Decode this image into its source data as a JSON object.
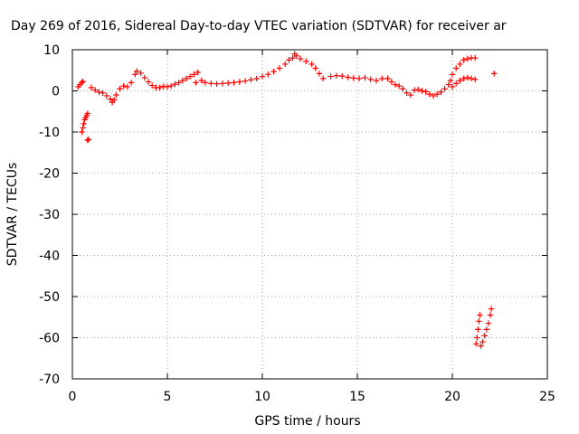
{
  "chart_data": {
    "type": "scatter",
    "title": "Day 269 of 2016, Sidereal Day-to-day VTEC variation (SDTVAR) for receiver ar",
    "xlabel": "GPS time / hours",
    "ylabel": "SDTVAR / TECUs",
    "xlim": [
      0,
      25
    ],
    "ylim": [
      -70,
      10
    ],
    "xticks": [
      "0",
      "5",
      "10",
      "15",
      "20",
      "25"
    ],
    "yticks": [
      "10",
      "0",
      "-10",
      "-20",
      "-30",
      "-40",
      "-50",
      "-60",
      "-70"
    ],
    "grid": true,
    "marker": "plus",
    "color": "#ff0000",
    "series": [
      {
        "points": [
          [
            0.3,
            1.0
          ],
          [
            0.4,
            1.5
          ],
          [
            0.5,
            2.0
          ],
          [
            0.55,
            2.3
          ],
          [
            0.5,
            -10.0
          ],
          [
            0.55,
            -9.0
          ],
          [
            0.6,
            -8.0
          ],
          [
            0.65,
            -7.0
          ],
          [
            0.7,
            -6.5
          ],
          [
            0.75,
            -6.0
          ],
          [
            0.8,
            -5.5
          ],
          [
            0.8,
            -12.0
          ],
          [
            0.85,
            -11.8
          ],
          [
            1.0,
            0.8
          ],
          [
            1.2,
            0.2
          ],
          [
            1.4,
            -0.3
          ],
          [
            1.6,
            -0.5
          ],
          [
            1.8,
            -1.2
          ],
          [
            2.0,
            -2.0
          ],
          [
            2.1,
            -2.8
          ],
          [
            2.2,
            -2.2
          ],
          [
            2.3,
            -1.0
          ],
          [
            2.5,
            0.5
          ],
          [
            2.7,
            1.2
          ],
          [
            2.9,
            1.0
          ],
          [
            3.1,
            2.0
          ],
          [
            3.3,
            4.0
          ],
          [
            3.4,
            4.8
          ],
          [
            3.6,
            4.3
          ],
          [
            3.8,
            3.2
          ],
          [
            4.0,
            2.2
          ],
          [
            4.2,
            1.3
          ],
          [
            4.4,
            0.8
          ],
          [
            4.6,
            0.8
          ],
          [
            4.8,
            1.1
          ],
          [
            5.0,
            1.0
          ],
          [
            5.2,
            1.2
          ],
          [
            5.4,
            1.6
          ],
          [
            5.6,
            2.0
          ],
          [
            5.8,
            2.5
          ],
          [
            6.0,
            3.0
          ],
          [
            6.2,
            3.5
          ],
          [
            6.4,
            4.0
          ],
          [
            6.6,
            4.5
          ],
          [
            6.5,
            2.0
          ],
          [
            6.8,
            2.5
          ],
          [
            7.0,
            2.0
          ],
          [
            7.3,
            1.8
          ],
          [
            7.6,
            1.7
          ],
          [
            7.9,
            1.8
          ],
          [
            8.2,
            1.9
          ],
          [
            8.5,
            2.0
          ],
          [
            8.8,
            2.2
          ],
          [
            9.1,
            2.4
          ],
          [
            9.4,
            2.7
          ],
          [
            9.7,
            3.0
          ],
          [
            10.0,
            3.5
          ],
          [
            10.3,
            4.0
          ],
          [
            10.6,
            4.7
          ],
          [
            10.9,
            5.5
          ],
          [
            11.2,
            6.5
          ],
          [
            11.4,
            7.5
          ],
          [
            11.6,
            8.0
          ],
          [
            11.7,
            9.0
          ],
          [
            11.8,
            8.5
          ],
          [
            12.0,
            7.8
          ],
          [
            12.3,
            7.2
          ],
          [
            12.6,
            6.5
          ],
          [
            12.8,
            5.5
          ],
          [
            13.0,
            4.2
          ],
          [
            13.2,
            3.0
          ],
          [
            13.6,
            3.5
          ],
          [
            13.9,
            3.7
          ],
          [
            14.2,
            3.6
          ],
          [
            14.5,
            3.3
          ],
          [
            14.8,
            3.1
          ],
          [
            15.1,
            3.0
          ],
          [
            15.4,
            3.2
          ],
          [
            15.7,
            2.8
          ],
          [
            16.0,
            2.5
          ],
          [
            16.3,
            3.0
          ],
          [
            16.6,
            3.0
          ],
          [
            16.8,
            2.2
          ],
          [
            17.0,
            1.5
          ],
          [
            17.2,
            1.2
          ],
          [
            17.4,
            0.5
          ],
          [
            17.6,
            -0.5
          ],
          [
            17.8,
            -1.0
          ],
          [
            18.0,
            0.2
          ],
          [
            18.2,
            0.3
          ],
          [
            18.4,
            0.0
          ],
          [
            18.6,
            -0.2
          ],
          [
            18.8,
            -0.8
          ],
          [
            19.0,
            -1.2
          ],
          [
            19.2,
            -0.8
          ],
          [
            19.4,
            -0.3
          ],
          [
            19.6,
            0.5
          ],
          [
            19.8,
            1.5
          ],
          [
            19.9,
            2.5
          ],
          [
            20.0,
            4.0
          ],
          [
            20.2,
            5.5
          ],
          [
            20.4,
            6.5
          ],
          [
            20.6,
            7.5
          ],
          [
            20.8,
            7.8
          ],
          [
            21.0,
            8.0
          ],
          [
            21.2,
            8.0
          ],
          [
            20.0,
            1.0
          ],
          [
            20.2,
            1.8
          ],
          [
            20.4,
            2.5
          ],
          [
            20.6,
            3.0
          ],
          [
            20.8,
            3.2
          ],
          [
            21.0,
            3.0
          ],
          [
            21.2,
            2.8
          ],
          [
            22.2,
            4.2
          ],
          [
            21.25,
            -61.5
          ],
          [
            21.3,
            -60.0
          ],
          [
            21.35,
            -58.0
          ],
          [
            21.4,
            -56.0
          ],
          [
            21.45,
            -54.5
          ],
          [
            21.5,
            -62.0
          ],
          [
            21.6,
            -61.0
          ],
          [
            21.7,
            -59.5
          ],
          [
            21.8,
            -58.0
          ],
          [
            21.9,
            -56.5
          ],
          [
            22.0,
            -54.5
          ],
          [
            22.05,
            -53.0
          ]
        ]
      }
    ]
  }
}
